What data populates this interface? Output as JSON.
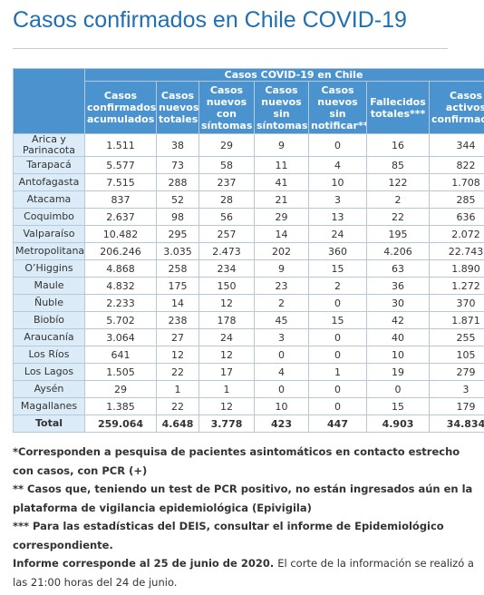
{
  "header": {
    "title": "Casos confirmados en Chile COVID-19"
  },
  "table": {
    "group_title": "Casos COVID-19 en Chile",
    "columns": [
      "Casos confirmados acumulados",
      "Casos nuevos totales",
      "Casos nuevos con síntomas",
      "Casos nuevos sin síntomas*",
      "Casos nuevos sin notificar**",
      "Fallecidos totales***",
      "Casos activos confirmados"
    ],
    "rows": [
      [
        "Arica y Parinacota",
        "1.511",
        "38",
        "29",
        "9",
        "0",
        "16",
        "344"
      ],
      [
        "Tarapacá",
        "5.577",
        "73",
        "58",
        "11",
        "4",
        "85",
        "822"
      ],
      [
        "Antofagasta",
        "7.515",
        "288",
        "237",
        "41",
        "10",
        "122",
        "1.708"
      ],
      [
        "Atacama",
        "837",
        "52",
        "28",
        "21",
        "3",
        "2",
        "285"
      ],
      [
        "Coquimbo",
        "2.637",
        "98",
        "56",
        "29",
        "13",
        "22",
        "636"
      ],
      [
        "Valparaíso",
        "10.482",
        "295",
        "257",
        "14",
        "24",
        "195",
        "2.072"
      ],
      [
        "Metropolitana",
        "206.246",
        "3.035",
        "2.473",
        "202",
        "360",
        "4.206",
        "22.743"
      ],
      [
        "O’Higgins",
        "4.868",
        "258",
        "234",
        "9",
        "15",
        "63",
        "1.890"
      ],
      [
        "Maule",
        "4.832",
        "175",
        "150",
        "23",
        "2",
        "36",
        "1.272"
      ],
      [
        "Ñuble",
        "2.233",
        "14",
        "12",
        "2",
        "0",
        "30",
        "370"
      ],
      [
        "Biobío",
        "5.702",
        "238",
        "178",
        "45",
        "15",
        "42",
        "1.871"
      ],
      [
        "Araucanía",
        "3.064",
        "27",
        "24",
        "3",
        "0",
        "40",
        "255"
      ],
      [
        "Los Ríos",
        "641",
        "12",
        "12",
        "0",
        "0",
        "10",
        "105"
      ],
      [
        "Los Lagos",
        "1.505",
        "22",
        "17",
        "4",
        "1",
        "19",
        "279"
      ],
      [
        "Aysén",
        "29",
        "1",
        "1",
        "0",
        "0",
        "0",
        "3"
      ],
      [
        "Magallanes",
        "1.385",
        "22",
        "12",
        "10",
        "0",
        "15",
        "179"
      ]
    ],
    "total": [
      "Total",
      "259.064",
      "4.648",
      "3.778",
      "423",
      "447",
      "4.903",
      "34.834"
    ]
  },
  "notes": [
    "*Corresponden a pesquisa de pacientes asintomáticos en contacto estrecho con casos, con PCR (+)",
    "** Casos que, teniendo un test de PCR positivo, no están ingresados aún en la plataforma de vigilancia epidemiológica (Epivigila)",
    "*** Para las estadísticas del DEIS, consultar el informe de Epidemiológico correspondiente."
  ],
  "report": {
    "bold": "Informe corresponde al 25 de junio de 2020.",
    "normal": "El corte de la información se realizó a las 21:00 horas del 24 de junio."
  }
}
